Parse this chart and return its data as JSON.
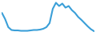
{
  "x": [
    0,
    1,
    2,
    3,
    4,
    5,
    6,
    7,
    8,
    9,
    10,
    11,
    12,
    13,
    14,
    15,
    16,
    17,
    18,
    19,
    20,
    21,
    22,
    23,
    24,
    25,
    26,
    27,
    28,
    29
  ],
  "y": [
    55,
    40,
    20,
    13,
    12,
    12,
    11,
    11,
    11,
    12,
    13,
    13,
    14,
    16,
    20,
    30,
    65,
    80,
    72,
    78,
    68,
    72,
    62,
    55,
    45,
    38,
    30,
    22,
    15,
    10
  ],
  "line_color": "#3a9fd8",
  "background_color": "#ffffff",
  "linewidth": 1.5,
  "ylim_min": 0,
  "ylim_max": 85
}
